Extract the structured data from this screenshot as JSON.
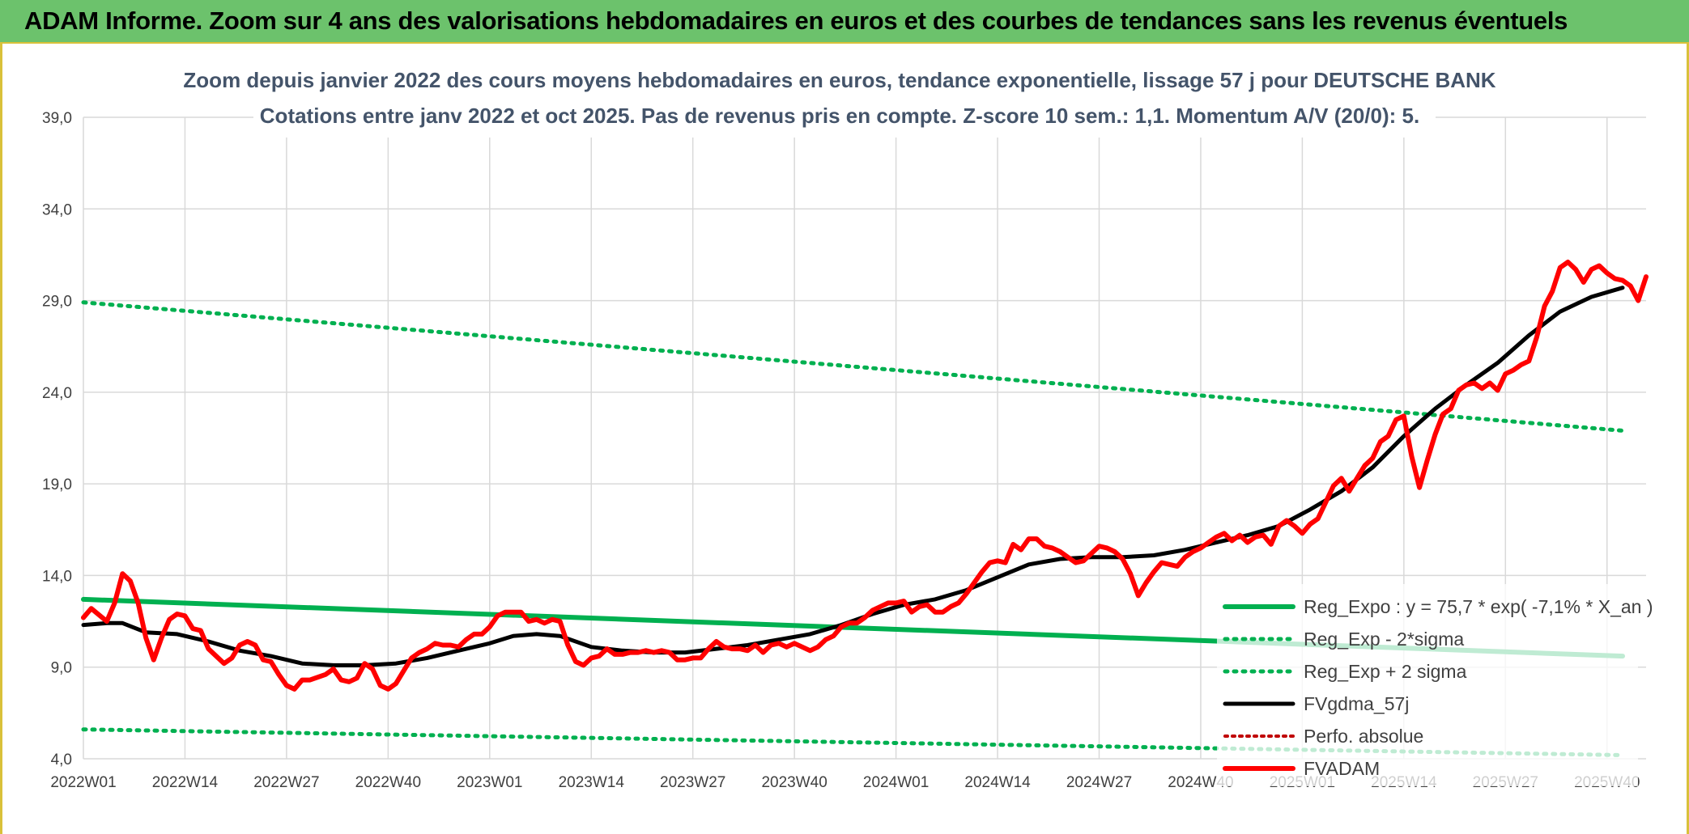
{
  "banner": {
    "title": "ADAM Informe. Zoom sur 4 ans des valorisations hebdomadaires en euros et des courbes de tendances sans les revenus éventuels"
  },
  "colors": {
    "reg_expo": "#00b050",
    "fvgdma": "#000000",
    "perfo": "#c00000",
    "fvadam": "#ff0000",
    "banner": "#6cc26c",
    "title_text": "#44546a"
  },
  "chart_data": {
    "type": "line",
    "title": "Zoom depuis janvier 2022 des cours moyens hebdomadaires en euros, tendance exponentielle, lissage 57 j pour DEUTSCHE BANK",
    "subtitle": "Cotations entre janv 2022 et oct 2025. Pas de revenus pris en compte. Z-score 10 sem.: 1,1. Momentum A/V (20/0): 5.",
    "ylim": [
      4,
      39
    ],
    "y_ticks": [
      "4,0",
      "9,0",
      "14,0",
      "19,0",
      "24,0",
      "29,0",
      "34,0",
      "39,0"
    ],
    "x_ticks": [
      "2022W01",
      "2022W14",
      "2022W27",
      "2022W40",
      "2023W01",
      "2023W14",
      "2023W27",
      "2023W40",
      "2024W01",
      "2024W14",
      "2024W27",
      "2024W40",
      "2025W01",
      "2025W14",
      "2025W27",
      "2025W40"
    ],
    "grid": true,
    "legend_position": "right-bottom",
    "series": [
      {
        "name": "Reg_Expo : y = 75,7 * exp( -7,1% *  X_an )",
        "style": "solid",
        "points": [
          [
            "2022W01",
            12.7
          ],
          [
            "2025W42",
            9.6
          ]
        ]
      },
      {
        "name": "Reg_Exp - 2*sigma",
        "style": "dotted",
        "points": [
          [
            "2022W01",
            5.6
          ],
          [
            "2025W42",
            4.2
          ]
        ]
      },
      {
        "name": "Reg_Exp + 2 sigma",
        "style": "dotted",
        "points": [
          [
            "2022W01",
            28.9
          ],
          [
            "2025W42",
            21.9
          ]
        ]
      },
      {
        "name": "FVgdma_57j",
        "style": "solid",
        "points": [
          [
            "2022W01",
            11.3
          ],
          [
            "2022W04",
            11.4
          ],
          [
            "2022W06",
            11.4
          ],
          [
            "2022W09",
            10.9
          ],
          [
            "2022W13",
            10.8
          ],
          [
            "2022W17",
            10.4
          ],
          [
            "2022W21",
            9.9
          ],
          [
            "2022W25",
            9.6
          ],
          [
            "2022W29",
            9.2
          ],
          [
            "2022W33",
            9.1
          ],
          [
            "2022W37",
            9.1
          ],
          [
            "2022W41",
            9.2
          ],
          [
            "2022W45",
            9.5
          ],
          [
            "2022W49",
            9.9
          ],
          [
            "2022W53",
            10.3
          ],
          [
            "2023W04",
            10.7
          ],
          [
            "2023W07",
            10.8
          ],
          [
            "2023W10",
            10.7
          ],
          [
            "2023W14",
            10.1
          ],
          [
            "2023W18",
            9.9
          ],
          [
            "2023W22",
            9.8
          ],
          [
            "2023W26",
            9.8
          ],
          [
            "2023W30",
            10.0
          ],
          [
            "2023W34",
            10.2
          ],
          [
            "2023W38",
            10.5
          ],
          [
            "2023W42",
            10.8
          ],
          [
            "2023W46",
            11.3
          ],
          [
            "2023W50",
            11.9
          ],
          [
            "2024W02",
            12.4
          ],
          [
            "2024W06",
            12.7
          ],
          [
            "2024W10",
            13.2
          ],
          [
            "2024W14",
            13.9
          ],
          [
            "2024W18",
            14.6
          ],
          [
            "2024W22",
            14.9
          ],
          [
            "2024W26",
            15.0
          ],
          [
            "2024W30",
            15.0
          ],
          [
            "2024W34",
            15.1
          ],
          [
            "2024W38",
            15.4
          ],
          [
            "2024W42",
            15.8
          ],
          [
            "2024W46",
            16.2
          ],
          [
            "2024W50",
            16.7
          ],
          [
            "2025W02",
            17.6
          ],
          [
            "2025W06",
            18.6
          ],
          [
            "2025W10",
            19.9
          ],
          [
            "2025W14",
            21.6
          ],
          [
            "2025W18",
            23.1
          ],
          [
            "2025W22",
            24.4
          ],
          [
            "2025W26",
            25.6
          ],
          [
            "2025W30",
            27.1
          ],
          [
            "2025W34",
            28.4
          ],
          [
            "2025W38",
            29.2
          ],
          [
            "2025W42",
            29.7
          ]
        ]
      },
      {
        "name": "Perfo. absolue",
        "style": "dotted",
        "points": []
      },
      {
        "name": "FVADAM",
        "style": "solid",
        "points": [
          [
            "2022W01",
            11.7
          ],
          [
            "2022W02",
            12.2
          ],
          [
            "2022W04",
            11.5
          ],
          [
            "2022W05",
            12.5
          ],
          [
            "2022W06",
            14.1
          ],
          [
            "2022W07",
            13.7
          ],
          [
            "2022W08",
            12.5
          ],
          [
            "2022W09",
            10.6
          ],
          [
            "2022W10",
            9.4
          ],
          [
            "2022W11",
            10.6
          ],
          [
            "2022W12",
            11.6
          ],
          [
            "2022W13",
            11.9
          ],
          [
            "2022W14",
            11.8
          ],
          [
            "2022W15",
            11.1
          ],
          [
            "2022W16",
            11.0
          ],
          [
            "2022W17",
            10.0
          ],
          [
            "2022W19",
            9.2
          ],
          [
            "2022W20",
            9.5
          ],
          [
            "2022W21",
            10.2
          ],
          [
            "2022W22",
            10.4
          ],
          [
            "2022W23",
            10.2
          ],
          [
            "2022W24",
            9.4
          ],
          [
            "2022W25",
            9.3
          ],
          [
            "2022W26",
            8.6
          ],
          [
            "2022W27",
            8.0
          ],
          [
            "2022W28",
            7.8
          ],
          [
            "2022W29",
            8.3
          ],
          [
            "2022W30",
            8.3
          ],
          [
            "2022W32",
            8.6
          ],
          [
            "2022W33",
            8.9
          ],
          [
            "2022W34",
            8.3
          ],
          [
            "2022W35",
            8.2
          ],
          [
            "2022W36",
            8.4
          ],
          [
            "2022W37",
            9.2
          ],
          [
            "2022W38",
            8.9
          ],
          [
            "2022W39",
            8.0
          ],
          [
            "2022W40",
            7.8
          ],
          [
            "2022W41",
            8.1
          ],
          [
            "2022W42",
            8.8
          ],
          [
            "2022W43",
            9.5
          ],
          [
            "2022W44",
            9.8
          ],
          [
            "2022W45",
            10.0
          ],
          [
            "2022W46",
            10.3
          ],
          [
            "2022W47",
            10.2
          ],
          [
            "2022W48",
            10.2
          ],
          [
            "2022W49",
            10.1
          ],
          [
            "2022W50",
            10.5
          ],
          [
            "2022W51",
            10.8
          ],
          [
            "2022W52",
            10.8
          ],
          [
            "2023W01",
            11.2
          ],
          [
            "2023W02",
            11.8
          ],
          [
            "2023W03",
            12.0
          ],
          [
            "2023W04",
            12.0
          ],
          [
            "2023W05",
            12.0
          ],
          [
            "2023W06",
            11.5
          ],
          [
            "2023W07",
            11.6
          ],
          [
            "2023W08",
            11.4
          ],
          [
            "2023W09",
            11.6
          ],
          [
            "2023W10",
            11.5
          ],
          [
            "2023W11",
            10.2
          ],
          [
            "2023W12",
            9.3
          ],
          [
            "2023W13",
            9.1
          ],
          [
            "2023W14",
            9.5
          ],
          [
            "2023W15",
            9.6
          ],
          [
            "2023W16",
            10.0
          ],
          [
            "2023W17",
            9.7
          ],
          [
            "2023W18",
            9.7
          ],
          [
            "2023W19",
            9.8
          ],
          [
            "2023W20",
            9.8
          ],
          [
            "2023W21",
            9.9
          ],
          [
            "2023W22",
            9.8
          ],
          [
            "2023W23",
            9.9
          ],
          [
            "2023W24",
            9.8
          ],
          [
            "2023W25",
            9.4
          ],
          [
            "2023W26",
            9.4
          ],
          [
            "2023W27",
            9.5
          ],
          [
            "2023W28",
            9.5
          ],
          [
            "2023W29",
            10.0
          ],
          [
            "2023W30",
            10.4
          ],
          [
            "2023W31",
            10.1
          ],
          [
            "2023W32",
            10.0
          ],
          [
            "2023W33",
            10.0
          ],
          [
            "2023W34",
            9.9
          ],
          [
            "2023W35",
            10.2
          ],
          [
            "2023W36",
            9.8
          ],
          [
            "2023W37",
            10.2
          ],
          [
            "2023W38",
            10.3
          ],
          [
            "2023W39",
            10.1
          ],
          [
            "2023W40",
            10.3
          ],
          [
            "2023W41",
            10.1
          ],
          [
            "2023W42",
            9.9
          ],
          [
            "2023W43",
            10.1
          ],
          [
            "2023W44",
            10.5
          ],
          [
            "2023W45",
            10.7
          ],
          [
            "2023W46",
            11.2
          ],
          [
            "2023W47",
            11.4
          ],
          [
            "2023W48",
            11.4
          ],
          [
            "2023W49",
            11.7
          ],
          [
            "2023W50",
            12.1
          ],
          [
            "2023W51",
            12.3
          ],
          [
            "2023W52",
            12.5
          ],
          [
            "2024W01",
            12.5
          ],
          [
            "2024W02",
            12.6
          ],
          [
            "2024W03",
            12.0
          ],
          [
            "2024W04",
            12.3
          ],
          [
            "2024W05",
            12.4
          ],
          [
            "2024W06",
            12.0
          ],
          [
            "2024W07",
            12.0
          ],
          [
            "2024W08",
            12.3
          ],
          [
            "2024W09",
            12.5
          ],
          [
            "2024W10",
            13.0
          ],
          [
            "2024W11",
            13.6
          ],
          [
            "2024W12",
            14.2
          ],
          [
            "2024W13",
            14.7
          ],
          [
            "2024W14",
            14.8
          ],
          [
            "2024W15",
            14.7
          ],
          [
            "2024W16",
            15.7
          ],
          [
            "2024W17",
            15.4
          ],
          [
            "2024W18",
            16.0
          ],
          [
            "2024W19",
            16.0
          ],
          [
            "2024W20",
            15.6
          ],
          [
            "2024W21",
            15.5
          ],
          [
            "2024W22",
            15.3
          ],
          [
            "2024W23",
            15.0
          ],
          [
            "2024W24",
            14.7
          ],
          [
            "2024W25",
            14.8
          ],
          [
            "2024W26",
            15.2
          ],
          [
            "2024W27",
            15.6
          ],
          [
            "2024W28",
            15.5
          ],
          [
            "2024W29",
            15.3
          ],
          [
            "2024W30",
            14.9
          ],
          [
            "2024W31",
            14.1
          ],
          [
            "2024W32",
            12.9
          ],
          [
            "2024W33",
            13.6
          ],
          [
            "2024W34",
            14.2
          ],
          [
            "2024W35",
            14.7
          ],
          [
            "2024W36",
            14.6
          ],
          [
            "2024W37",
            14.5
          ],
          [
            "2024W38",
            15.0
          ],
          [
            "2024W39",
            15.3
          ],
          [
            "2024W40",
            15.5
          ],
          [
            "2024W41",
            15.8
          ],
          [
            "2024W42",
            16.1
          ],
          [
            "2024W43",
            16.3
          ],
          [
            "2024W44",
            15.9
          ],
          [
            "2024W45",
            16.2
          ],
          [
            "2024W46",
            15.8
          ],
          [
            "2024W47",
            16.1
          ],
          [
            "2024W48",
            16.2
          ],
          [
            "2024W49",
            15.7
          ],
          [
            "2024W50",
            16.7
          ],
          [
            "2024W51",
            17.0
          ],
          [
            "2024W52",
            16.7
          ],
          [
            "2025W01",
            16.3
          ],
          [
            "2025W02",
            16.8
          ],
          [
            "2025W03",
            17.1
          ],
          [
            "2025W04",
            18.0
          ],
          [
            "2025W05",
            18.9
          ],
          [
            "2025W06",
            19.3
          ],
          [
            "2025W07",
            18.6
          ],
          [
            "2025W08",
            19.3
          ],
          [
            "2025W09",
            20.0
          ],
          [
            "2025W10",
            20.4
          ],
          [
            "2025W11",
            21.3
          ],
          [
            "2025W12",
            21.6
          ],
          [
            "2025W13",
            22.5
          ],
          [
            "2025W14",
            22.7
          ],
          [
            "2025W15",
            20.5
          ],
          [
            "2025W16",
            18.8
          ],
          [
            "2025W17",
            20.3
          ],
          [
            "2025W18",
            21.7
          ],
          [
            "2025W19",
            22.8
          ],
          [
            "2025W20",
            23.1
          ],
          [
            "2025W21",
            24.1
          ],
          [
            "2025W22",
            24.4
          ],
          [
            "2025W23",
            24.5
          ],
          [
            "2025W24",
            24.2
          ],
          [
            "2025W25",
            24.5
          ],
          [
            "2025W26",
            24.1
          ],
          [
            "2025W27",
            25.0
          ],
          [
            "2025W28",
            25.2
          ],
          [
            "2025W29",
            25.5
          ],
          [
            "2025W30",
            25.7
          ],
          [
            "2025W31",
            27.0
          ],
          [
            "2025W32",
            28.7
          ],
          [
            "2025W33",
            29.5
          ],
          [
            "2025W34",
            30.8
          ],
          [
            "2025W35",
            31.1
          ],
          [
            "2025W36",
            30.7
          ],
          [
            "2025W37",
            30.0
          ],
          [
            "2025W38",
            30.7
          ],
          [
            "2025W39",
            30.9
          ],
          [
            "2025W40",
            30.5
          ],
          [
            "2025W41",
            30.2
          ],
          [
            "2025W42",
            30.1
          ],
          [
            "2025W43",
            29.8
          ],
          [
            "2025W44",
            29.0
          ],
          [
            "2025W45",
            30.3
          ]
        ]
      }
    ]
  }
}
